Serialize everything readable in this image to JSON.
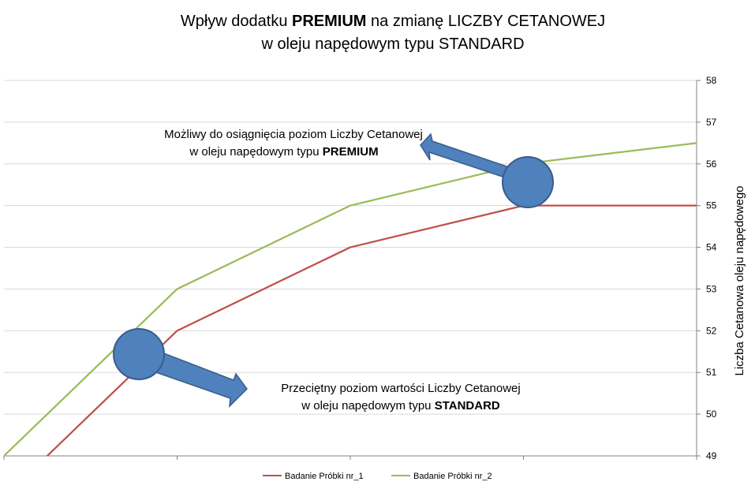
{
  "chart_data": {
    "type": "line",
    "title": {
      "line1_pre": "Wpływ dodatku ",
      "line1_bold": "PREMIUM",
      "line1_post": " na zmianę LICZBY CETANOWEJ",
      "line2": "w oleju napędowym typu STANDARD"
    },
    "ylabel": "Liczba Cetanowa oleju napędowego",
    "ylim": [
      49,
      58
    ],
    "yticks": [
      "49",
      "50",
      "51",
      "52",
      "53",
      "54",
      "55",
      "56",
      "57",
      "58"
    ],
    "x_axis_position": "bottom",
    "y_axis_position": "right",
    "grid": true,
    "legend_position": "bottom",
    "x": [
      0,
      1,
      2,
      3,
      4
    ],
    "series": [
      {
        "name": "Badanie Próbki nr_1",
        "color": "#c0504d",
        "values": [
          48,
          52,
          54,
          55,
          55
        ]
      },
      {
        "name": "Badanie Próbki nr_2",
        "color": "#9bbb59",
        "values": [
          49,
          53,
          55,
          56,
          56.5
        ]
      }
    ],
    "annotations": [
      {
        "line1": "Możliwy do osiągnięcia poziom Liczby Cetanowej",
        "line2_pre": "w oleju napędowym typu ",
        "line2_bold": "PREMIUM"
      },
      {
        "line1": "Przeciętny poziom wartości Liczby Cetanowej",
        "line2_pre": "w oleju napędowym typu ",
        "line2_bold": "STANDARD"
      }
    ],
    "marker_color": "#4f81bd"
  }
}
